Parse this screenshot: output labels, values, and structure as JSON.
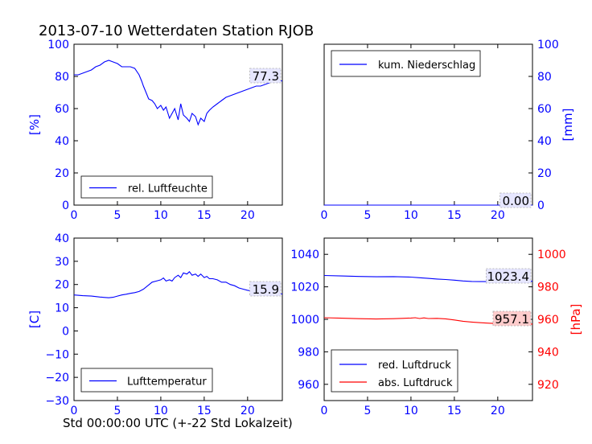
{
  "figure": {
    "title": "2013-07-10 Wetterdaten Station RJOB",
    "xlabel": "Std 00:00:00 UTC (+-22 Std Lokalzeit)"
  },
  "colors": {
    "blue": "#0000ff",
    "red": "#ff0000",
    "axis": "#000000",
    "last_box_blue": "#e6e6ff",
    "last_box_red": "#ffcccc"
  },
  "chart_data": [
    {
      "type": "line",
      "panel": "top-left",
      "ylabel": "[%]",
      "xlim": [
        0,
        24
      ],
      "ylim": [
        0,
        100
      ],
      "xticks": [
        "0",
        "5",
        "10",
        "15",
        "20"
      ],
      "yticks": [
        "0",
        "20",
        "40",
        "60",
        "80",
        "100"
      ],
      "legend": {
        "location": "lower-left",
        "entries": [
          "rel. Luftfeuchte"
        ]
      },
      "last_value_label": "77.3",
      "series": [
        {
          "name": "rel. Luftfeuchte",
          "color": "blue",
          "x": [
            0,
            0.5,
            1,
            1.5,
            2,
            2.5,
            3,
            3.5,
            4,
            4.5,
            5,
            5.5,
            6,
            6.5,
            7,
            7.5,
            7.8,
            8,
            8.3,
            8.6,
            9,
            9.3,
            9.6,
            10,
            10.3,
            10.6,
            11,
            11.3,
            11.6,
            12,
            12.3,
            12.6,
            13,
            13.3,
            13.6,
            14,
            14.3,
            14.6,
            15,
            15.3,
            15.6,
            16,
            16.5,
            17,
            17.5,
            18,
            18.5,
            19,
            19.5,
            20,
            20.5,
            21,
            21.5,
            22,
            22.5,
            23,
            23.5,
            24
          ],
          "y": [
            81,
            81,
            82,
            83,
            84,
            86,
            87,
            89,
            90,
            89,
            88,
            86,
            86,
            86,
            85,
            81,
            77,
            74,
            70,
            66,
            65,
            63,
            60,
            62,
            59,
            61,
            54,
            57,
            60,
            53,
            63,
            56,
            54,
            52,
            57,
            55,
            50,
            54,
            52,
            57,
            59,
            61,
            63,
            65,
            67,
            68,
            69,
            70,
            71,
            72,
            73,
            74,
            74,
            75,
            76,
            77,
            77,
            77.3
          ]
        }
      ]
    },
    {
      "type": "line",
      "panel": "top-right",
      "ylabel": "[mm]",
      "xlim": [
        0,
        24
      ],
      "ylim": [
        0,
        100
      ],
      "xticks": [
        "0",
        "5",
        "10",
        "15",
        "20"
      ],
      "yticks": [
        "0",
        "20",
        "40",
        "60",
        "80",
        "100"
      ],
      "legend": {
        "location": "upper-left",
        "entries": [
          "kum. Niederschlag"
        ]
      },
      "last_value_label": "0.00",
      "series": [
        {
          "name": "kum. Niederschlag",
          "color": "blue",
          "x": [
            0,
            24
          ],
          "y": [
            0,
            0
          ]
        }
      ]
    },
    {
      "type": "line",
      "panel": "bottom-left",
      "ylabel": "[C]",
      "xlim": [
        0,
        24
      ],
      "ylim": [
        -30,
        40
      ],
      "xticks": [
        "0",
        "5",
        "10",
        "15",
        "20"
      ],
      "yticks": [
        "−30",
        "−20",
        "−10",
        "0",
        "10",
        "20",
        "30",
        "40"
      ],
      "legend": {
        "location": "lower-left",
        "entries": [
          "Lufttemperatur"
        ]
      },
      "last_value_label": "15.9",
      "series": [
        {
          "name": "Lufttemperatur",
          "color": "blue",
          "x": [
            0,
            1,
            2,
            3,
            4,
            4.5,
            5,
            5.5,
            6,
            6.5,
            7,
            7.5,
            8,
            8.5,
            9,
            9.5,
            10,
            10.3,
            10.6,
            11,
            11.3,
            11.6,
            12,
            12.3,
            12.6,
            13,
            13.3,
            13.6,
            14,
            14.3,
            14.6,
            15,
            15.3,
            15.6,
            16,
            16.5,
            17,
            17.5,
            18,
            18.5,
            19,
            19.5,
            20,
            20.5,
            21,
            21.5,
            22,
            22.5,
            23,
            23.5,
            24
          ],
          "y": [
            15.5,
            15.2,
            15,
            14.6,
            14.3,
            14.5,
            15,
            15.5,
            15.8,
            16.2,
            16.5,
            17,
            18,
            19.5,
            21,
            21.5,
            22,
            22.8,
            21.5,
            22,
            21.5,
            23,
            24,
            23,
            25,
            24.5,
            25.5,
            24,
            24.5,
            23.5,
            24.5,
            23,
            23.5,
            22.5,
            22.5,
            22,
            21,
            21,
            20,
            19.5,
            18.5,
            18,
            17.5,
            17.2,
            17,
            16.8,
            16.5,
            16.2,
            16,
            16,
            15.9
          ]
        }
      ]
    },
    {
      "type": "line",
      "panel": "bottom-right",
      "ylabel": "[hPa]",
      "xlim": [
        0,
        24
      ],
      "ylim_left": [
        950,
        1050
      ],
      "ylim_right": [
        910,
        1010
      ],
      "xticks": [
        "0",
        "5",
        "10",
        "15",
        "20"
      ],
      "yticks_left": [
        "960",
        "980",
        "1000",
        "1020",
        "1040"
      ],
      "yticks_right": [
        "920",
        "940",
        "960",
        "980",
        "1000"
      ],
      "legend": {
        "location": "lower-left",
        "entries": [
          "red. Luftdruck",
          "abs. Luftdruck"
        ]
      },
      "last_value_labels": [
        "1023.4",
        "957.1"
      ],
      "series": [
        {
          "name": "red. Luftdruck",
          "color": "blue",
          "axis": "left",
          "x": [
            0,
            2,
            4,
            6,
            8,
            10,
            11,
            12,
            13,
            14,
            15,
            16,
            17,
            18,
            19,
            20,
            21,
            22,
            23,
            24
          ],
          "y": [
            1027,
            1026.7,
            1026.4,
            1026.2,
            1026.3,
            1026,
            1025.6,
            1025.2,
            1024.8,
            1024.5,
            1024.1,
            1023.6,
            1023.3,
            1023.2,
            1023.2,
            1023.3,
            1023.3,
            1023.4,
            1023.4,
            1023.4
          ]
        },
        {
          "name": "abs. Luftdruck",
          "color": "red",
          "axis": "right",
          "x": [
            0,
            2,
            4,
            6,
            8,
            9,
            10,
            10.5,
            11,
            11.5,
            12,
            13,
            14,
            15,
            16,
            17,
            18,
            19,
            20,
            21,
            22,
            23,
            24
          ],
          "y": [
            961,
            960.7,
            960.4,
            960.2,
            960.4,
            960.6,
            960.8,
            961,
            960.5,
            960.9,
            960.5,
            960.6,
            960.3,
            959.6,
            958.8,
            958.3,
            957.9,
            957.6,
            957.4,
            957.2,
            957.1,
            957.1,
            957.1
          ]
        }
      ]
    }
  ]
}
